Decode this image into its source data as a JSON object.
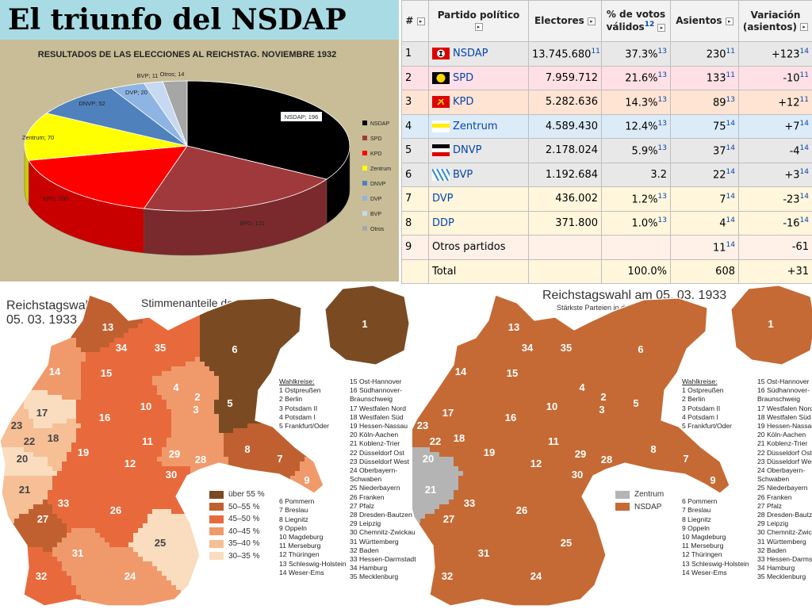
{
  "page": {
    "title": "El triunfo del NSDAP"
  },
  "chart_data": {
    "type": "pie",
    "title": "RESULTADOS DE LAS ELECCIONES AL REICHSTAG. NOVIEMBRE 1932",
    "categories": [
      "NSDAP",
      "SPD",
      "KPD",
      "Zentrum",
      "DNVP",
      "DVP",
      "BVP",
      "Otros"
    ],
    "values": [
      196,
      121,
      100,
      70,
      52,
      20,
      11,
      14
    ],
    "data_labels": [
      "NSDAP; 196",
      "SPD; 121",
      "KPD; 100",
      "Zentrum; 70",
      "DNVP; 52",
      "DVP; 20",
      "BVP; 11",
      "Otros; 14"
    ],
    "colors": [
      "#000000",
      "#a0393c",
      "#ff0000",
      "#ffff00",
      "#4f81bd",
      "#8eb4e3",
      "#c6d9f1",
      "#a6a6a6"
    ],
    "side_colors": [
      "#000000",
      "#7a2a2c",
      "#c80000",
      "#cccc00",
      "#3a5f8f",
      "#6a8cb8",
      "#9db2cc",
      "#7f7f7f"
    ],
    "legend_placement": "right",
    "three_d": true
  },
  "table": {
    "headers": [
      "#",
      "Partido político",
      "Electores",
      "% de votos válidos",
      "Asientos",
      "Variación (asientos)"
    ],
    "header_notes": {
      "pct": "12"
    },
    "rows": [
      {
        "n": "1",
        "party": "NSDAP",
        "link": true,
        "flag": "nsdap",
        "bg": "#e8e8e8",
        "electores": "13.745.680",
        "e_note": "11",
        "pct": "37.3%",
        "p_note": "13",
        "seats": "230",
        "s_note": "11",
        "var": "+123",
        "v_note": "14"
      },
      {
        "n": "2",
        "party": "SPD",
        "link": true,
        "flag": "spd",
        "bg": "#ffe0e6",
        "electores": "7.959.712",
        "e_note": "",
        "pct": "21.6%",
        "p_note": "13",
        "seats": "133",
        "s_note": "11",
        "var": "-10",
        "v_note": "11"
      },
      {
        "n": "3",
        "party": "KPD",
        "link": true,
        "flag": "kpd",
        "bg": "#ffe4d4",
        "electores": "5.282.636",
        "e_note": "",
        "pct": "14.3%",
        "p_note": "13",
        "seats": "89",
        "s_note": "13",
        "var": "+12",
        "v_note": "11"
      },
      {
        "n": "4",
        "party": "Zentrum",
        "link": true,
        "flag": "zentrum",
        "bg": "#dcebf8",
        "electores": "4.589.430",
        "e_note": "",
        "pct": "12.4%",
        "p_note": "13",
        "seats": "75",
        "s_note": "14",
        "var": "+7",
        "v_note": "14"
      },
      {
        "n": "5",
        "party": "DNVP",
        "link": true,
        "flag": "dnvp",
        "bg": "#e8e8e8",
        "electores": "2.178.024",
        "e_note": "",
        "pct": "5.9%",
        "p_note": "13",
        "seats": "37",
        "s_note": "14",
        "var": "-4",
        "v_note": "14"
      },
      {
        "n": "6",
        "party": "BVP",
        "link": true,
        "flag": "bvp",
        "bg": "#e8e8e8",
        "electores": "1.192.684",
        "e_note": "",
        "pct": "3.2",
        "p_note": "",
        "seats": "22",
        "s_note": "14",
        "var": "+3",
        "v_note": "14"
      },
      {
        "n": "7",
        "party": "DVP",
        "link": true,
        "flag": "",
        "bg": "#fff6dc",
        "electores": "436.002",
        "e_note": "",
        "pct": "1.2%",
        "p_note": "13",
        "seats": "7",
        "s_note": "14",
        "var": "-23",
        "v_note": "14"
      },
      {
        "n": "8",
        "party": "DDP",
        "link": true,
        "flag": "",
        "bg": "#fff6dc",
        "electores": "371.800",
        "e_note": "",
        "pct": "1.0%",
        "p_note": "13",
        "seats": "4",
        "s_note": "14",
        "var": "-16",
        "v_note": "14"
      },
      {
        "n": "9",
        "party": "Otros partidos",
        "link": false,
        "flag": "",
        "bg": "#fff0e8",
        "electores": "",
        "e_note": "",
        "pct": "",
        "p_note": "",
        "seats": "11",
        "s_note": "14",
        "var": "-61",
        "v_note": ""
      },
      {
        "n": "",
        "party": "Total",
        "link": false,
        "flag": "",
        "bg": "#fff6dc",
        "electores": "",
        "e_note": "",
        "pct": "100.0%",
        "p_note": "",
        "seats": "608",
        "s_note": "",
        "var": "+31",
        "v_note": ""
      }
    ]
  },
  "map_left": {
    "title_line1": "Reichstagswahl",
    "title_line2": "05. 03. 1933",
    "subtitle": "Stimmenanteile der NSDAP",
    "legend": [
      {
        "label": "über 55 %",
        "color": "#7a4b22"
      },
      {
        "label": "50–55 %",
        "color": "#c06030"
      },
      {
        "label": "45–50 %",
        "color": "#e86a3c"
      },
      {
        "label": "40–45 %",
        "color": "#f09a6c"
      },
      {
        "label": "35–40 %",
        "color": "#f6bf96"
      },
      {
        "label": "30–35 %",
        "color": "#fadcbe"
      }
    ]
  },
  "map_right": {
    "title_line1": "Reichstagswahl am 05. 03. 1933",
    "subtitle": "Stärkste Parteien in den Wahlkreisen",
    "legend": [
      {
        "label": "Zentrum",
        "color": "#b4b4b4"
      },
      {
        "label": "NSDAP",
        "color": "#c56a35"
      }
    ]
  },
  "wahlkreise": {
    "heading": "Wahlkreise:",
    "col1": [
      "1 Ostpreußen",
      "2 Berlin",
      "3 Potsdam II",
      "4 Potsdam I",
      "5 Frankfurt/Oder"
    ],
    "col1b": [
      "6 Pommern",
      "7 Breslau",
      "8 Liegnitz",
      "9 Oppeln",
      "10 Magdeburg",
      "11 Merseburg",
      "12 Thüringen",
      "13 Schleswig-Holstein",
      "14 Weser-Ems"
    ],
    "col2": [
      "15 Ost-Hannover",
      "16 Südhannover-",
      "   Braunschweig",
      "17 Westfalen Nord",
      "18 Westfalen Süd",
      "19 Hessen-Nassau",
      "20 Köln-Aachen",
      "21 Koblenz-Trier",
      "22 Düsseldorf Ost",
      "23 Düsseldorf West",
      "24 Oberbayern-",
      "   Schwaben",
      "25 Niederbayern",
      "26 Franken",
      "27 Pfalz",
      "28 Dresden-Bautzen",
      "29 Leipzig",
      "30 Chemnitz-Zwickau",
      "31 Württemberg",
      "32 Baden",
      "33 Hessen-Darmstadt",
      "34 Hamburg",
      "35 Mecklenburg"
    ]
  },
  "regions": [
    {
      "id": "1",
      "left": "#7a4b22",
      "right": "#c56a35"
    },
    {
      "id": "2",
      "left": "#f09a6c",
      "right": "#c56a35"
    },
    {
      "id": "3",
      "left": "#f09a6c",
      "right": "#c56a35"
    },
    {
      "id": "4",
      "left": "#f09a6c",
      "right": "#c56a35"
    },
    {
      "id": "5",
      "left": "#7a4b22",
      "right": "#c56a35"
    },
    {
      "id": "6",
      "left": "#7a4b22",
      "right": "#c56a35"
    },
    {
      "id": "7",
      "left": "#c06030",
      "right": "#c56a35"
    },
    {
      "id": "8",
      "left": "#c06030",
      "right": "#c56a35"
    },
    {
      "id": "9",
      "left": "#f09a6c",
      "right": "#c56a35"
    },
    {
      "id": "10",
      "left": "#e86a3c",
      "right": "#c56a35"
    },
    {
      "id": "11",
      "left": "#e86a3c",
      "right": "#c56a35"
    },
    {
      "id": "12",
      "left": "#e86a3c",
      "right": "#c56a35"
    },
    {
      "id": "13",
      "left": "#c06030",
      "right": "#c56a35"
    },
    {
      "id": "14",
      "left": "#f09a6c",
      "right": "#c56a35"
    },
    {
      "id": "15",
      "left": "#e86a3c",
      "right": "#c56a35"
    },
    {
      "id": "16",
      "left": "#e86a3c",
      "right": "#c56a35"
    },
    {
      "id": "17",
      "left": "#fadcbe",
      "right": "#c56a35"
    },
    {
      "id": "18",
      "left": "#f6bf96",
      "right": "#c56a35"
    },
    {
      "id": "19",
      "left": "#e86a3c",
      "right": "#c56a35"
    },
    {
      "id": "20",
      "left": "#fadcbe",
      "right": "#b4b4b4"
    },
    {
      "id": "21",
      "left": "#f6bf96",
      "right": "#b4b4b4"
    },
    {
      "id": "22",
      "left": "#f6bf96",
      "right": "#c56a35"
    },
    {
      "id": "23",
      "left": "#f6bf96",
      "right": "#c56a35"
    },
    {
      "id": "24",
      "left": "#f09a6c",
      "right": "#c56a35"
    },
    {
      "id": "25",
      "left": "#fadcbe",
      "right": "#c56a35"
    },
    {
      "id": "26",
      "left": "#e86a3c",
      "right": "#c56a35"
    },
    {
      "id": "27",
      "left": "#c06030",
      "right": "#c56a35"
    },
    {
      "id": "28",
      "left": "#f09a6c",
      "right": "#c56a35"
    },
    {
      "id": "29",
      "left": "#f09a6c",
      "right": "#c56a35"
    },
    {
      "id": "30",
      "left": "#e86a3c",
      "right": "#c56a35"
    },
    {
      "id": "31",
      "left": "#f09a6c",
      "right": "#c56a35"
    },
    {
      "id": "32",
      "left": "#e86a3c",
      "right": "#c56a35"
    },
    {
      "id": "33",
      "left": "#e86a3c",
      "right": "#c56a35"
    },
    {
      "id": "34",
      "left": "#e86a3c",
      "right": "#c56a35"
    },
    {
      "id": "35",
      "left": "#e86a3c",
      "right": "#c56a35"
    }
  ]
}
